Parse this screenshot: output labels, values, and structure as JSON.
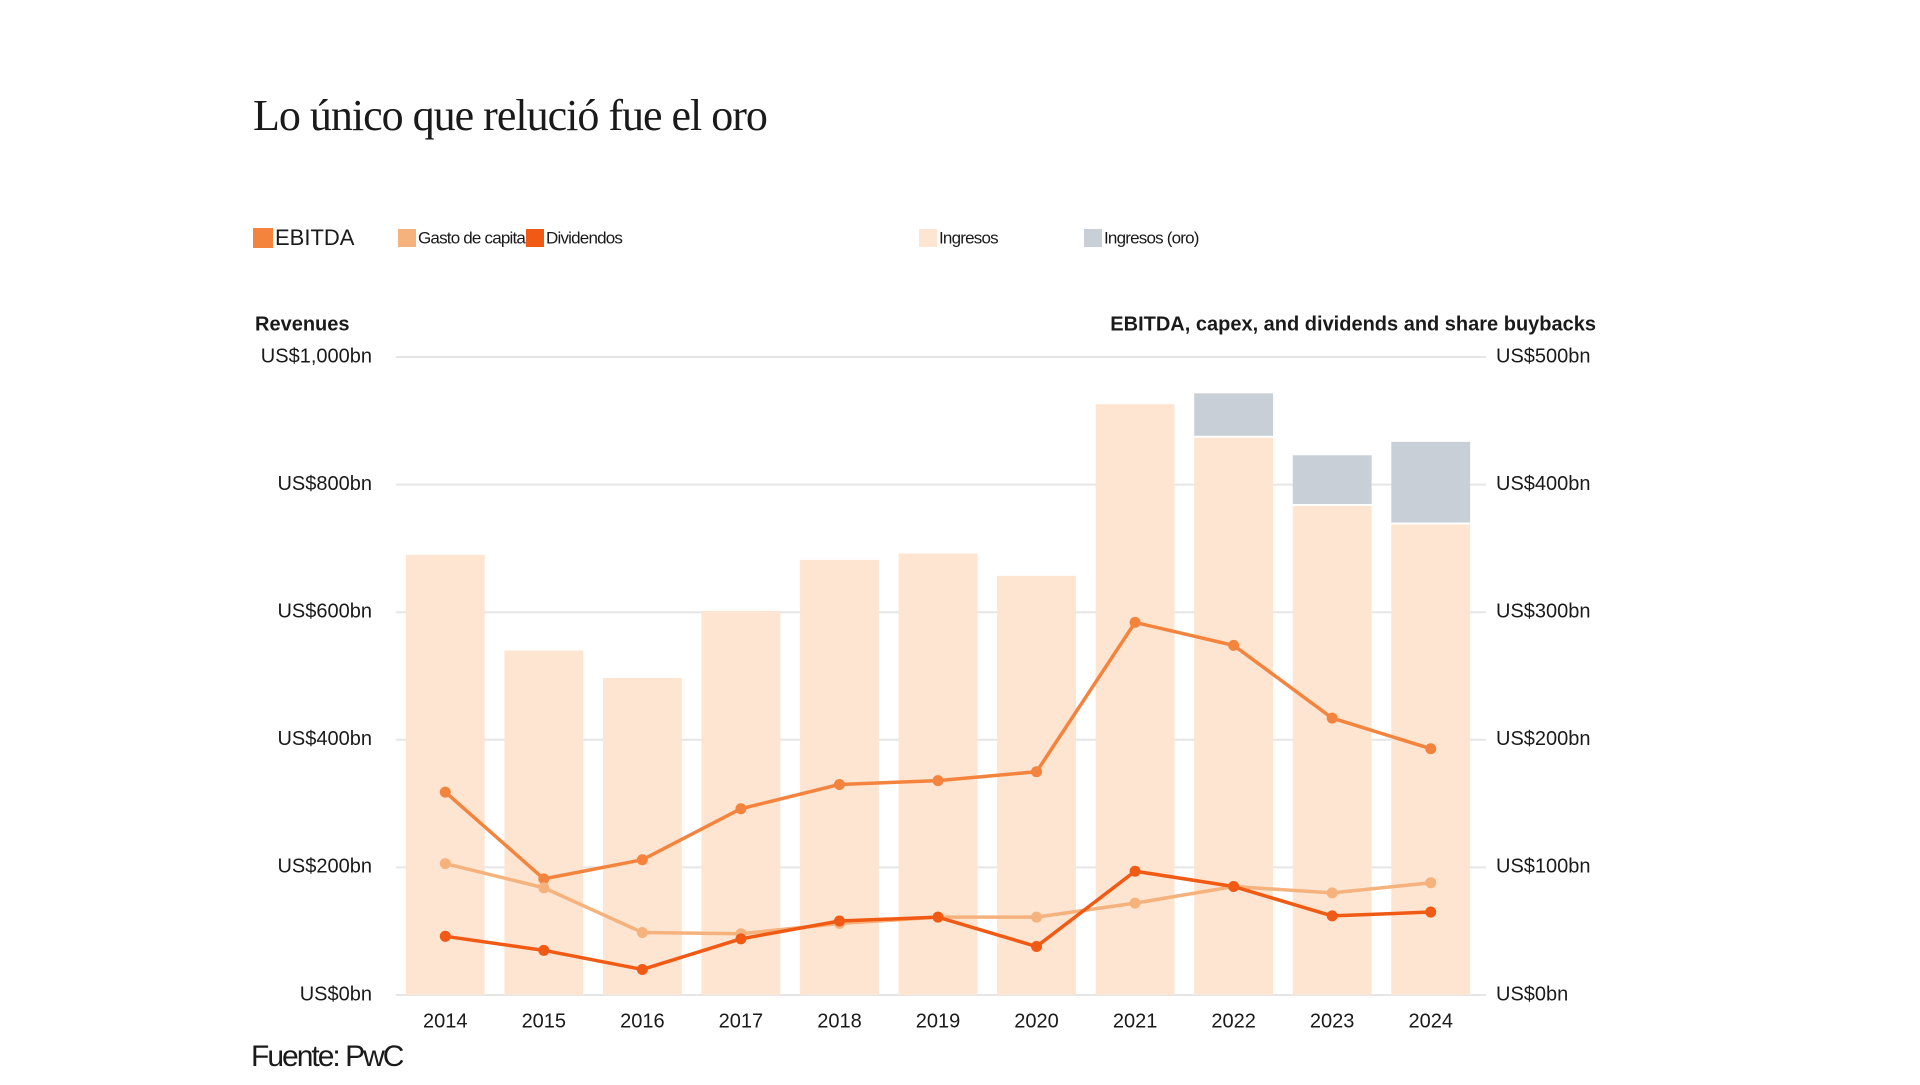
{
  "chart_data": {
    "type": "bar",
    "title": "Lo único que relució fue el oro",
    "y_label": "Revenues",
    "y2_label": "EBITDA, capex, and dividends and share buybacks",
    "source": "Fuente: PwC",
    "categories": [
      "2014",
      "2015",
      "2016",
      "2017",
      "2018",
      "2019",
      "2020",
      "2021",
      "2022",
      "2023",
      "2024"
    ],
    "ylim": [
      0,
      1000
    ],
    "yticks": [
      {
        "value": 0,
        "label": "US$0bn"
      },
      {
        "value": 200,
        "label": "US$200bn"
      },
      {
        "value": 400,
        "label": "US$400bn"
      },
      {
        "value": 600,
        "label": "US$600bn"
      },
      {
        "value": 800,
        "label": "US$800bn"
      },
      {
        "value": 1000,
        "label": "US$1,000bn"
      }
    ],
    "y2lim": [
      0,
      500
    ],
    "y2ticks": [
      {
        "value": 0,
        "label": "US$0bn"
      },
      {
        "value": 100,
        "label": "US$100bn"
      },
      {
        "value": 200,
        "label": "US$200bn"
      },
      {
        "value": 300,
        "label": "US$300bn"
      },
      {
        "value": 400,
        "label": "US$400bn"
      },
      {
        "value": 500,
        "label": "US$500bn"
      }
    ],
    "grid": true,
    "series": [
      {
        "name": "EBITDA",
        "type": "line",
        "axis": "y2",
        "color": "#f4843d",
        "values": [
          159,
          91,
          106,
          146,
          165,
          168,
          175,
          292,
          274,
          217,
          193
        ]
      },
      {
        "name": "Gasto de capital",
        "type": "line",
        "axis": "y2",
        "color": "#f6b27c",
        "values": [
          103,
          84,
          49,
          48,
          56,
          61,
          61,
          72,
          85,
          80,
          88
        ]
      },
      {
        "name": "Dividendos",
        "type": "line",
        "axis": "y2",
        "color": "#f05a14",
        "values": [
          46,
          35,
          20,
          44,
          58,
          61,
          38,
          97,
          85,
          62,
          65
        ]
      },
      {
        "name": "Ingresos",
        "type": "bar",
        "color": "#fde5d2",
        "values": [
          690,
          540,
          497,
          602,
          682,
          692,
          657,
          926,
          875,
          768,
          739
        ]
      },
      {
        "name": "Ingresos (oro)",
        "type": "bar",
        "color": "#c9cfd6",
        "values": [
          null,
          null,
          null,
          null,
          null,
          null,
          null,
          null,
          68,
          78,
          128
        ]
      }
    ]
  }
}
